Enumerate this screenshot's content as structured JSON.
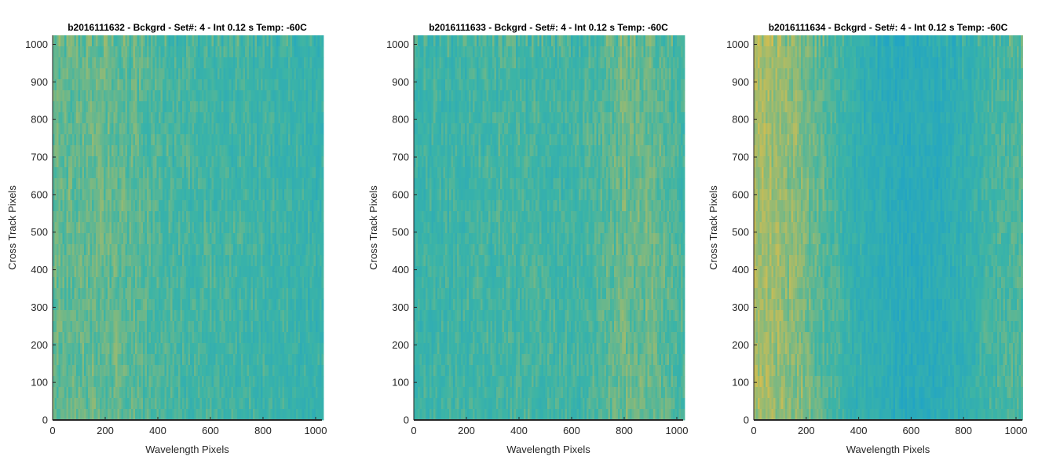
{
  "colors": {
    "low": "#1aa0cc",
    "mid": "#3cb4a6",
    "high": "#d6be4e",
    "axis": "#262626"
  },
  "chart_data": [
    {
      "type": "heatmap",
      "title": "b2016111632 - Bckgrd - Set#: 4 - Int 0.12 s Temp: -60C",
      "xlabel": "Wavelength Pixels",
      "ylabel": "Cross Track Pixels",
      "xlim": [
        0,
        1024
      ],
      "ylim": [
        0,
        1024
      ],
      "xticks": [
        0,
        200,
        400,
        600,
        800,
        1000
      ],
      "yticks": [
        0,
        100,
        200,
        300,
        400,
        500,
        600,
        700,
        800,
        900,
        1000
      ],
      "column_profile": {
        "x": [
          0,
          100,
          200,
          300,
          400,
          500,
          600,
          700,
          800,
          900,
          1000,
          1024
        ],
        "level": [
          0.62,
          0.63,
          0.64,
          0.6,
          0.55,
          0.5,
          0.5,
          0.49,
          0.47,
          0.45,
          0.43,
          0.42
        ]
      }
    },
    {
      "type": "heatmap",
      "title": "b2016111633 - Bckgrd - Set#: 4 - Int 0.12 s Temp: -60C",
      "xlabel": "Wavelength Pixels",
      "ylabel": "Cross Track Pixels",
      "xlim": [
        0,
        1024
      ],
      "ylim": [
        0,
        1024
      ],
      "xticks": [
        0,
        200,
        400,
        600,
        800,
        1000
      ],
      "yticks": [
        0,
        100,
        200,
        300,
        400,
        500,
        600,
        700,
        800,
        900,
        1000
      ],
      "column_profile": {
        "x": [
          0,
          100,
          200,
          300,
          400,
          500,
          600,
          700,
          800,
          900,
          1000,
          1024
        ],
        "level": [
          0.46,
          0.47,
          0.48,
          0.5,
          0.52,
          0.5,
          0.49,
          0.55,
          0.66,
          0.64,
          0.55,
          0.5
        ]
      }
    },
    {
      "type": "heatmap",
      "title": "b2016111634 - Bckgrd - Set#: 4 - Int 0.12 s Temp: -60C",
      "xlabel": "Wavelength Pixels",
      "ylabel": "Cross Track Pixels",
      "xlim": [
        0,
        1024
      ],
      "ylim": [
        0,
        1024
      ],
      "xticks": [
        0,
        200,
        400,
        600,
        800,
        1000
      ],
      "yticks": [
        0,
        100,
        200,
        300,
        400,
        500,
        600,
        700,
        800,
        900,
        1000
      ],
      "column_profile": {
        "x": [
          0,
          100,
          200,
          300,
          400,
          500,
          600,
          700,
          800,
          900,
          1000,
          1024
        ],
        "level": [
          0.86,
          0.8,
          0.7,
          0.52,
          0.38,
          0.3,
          0.25,
          0.28,
          0.38,
          0.5,
          0.56,
          0.56
        ]
      }
    }
  ]
}
